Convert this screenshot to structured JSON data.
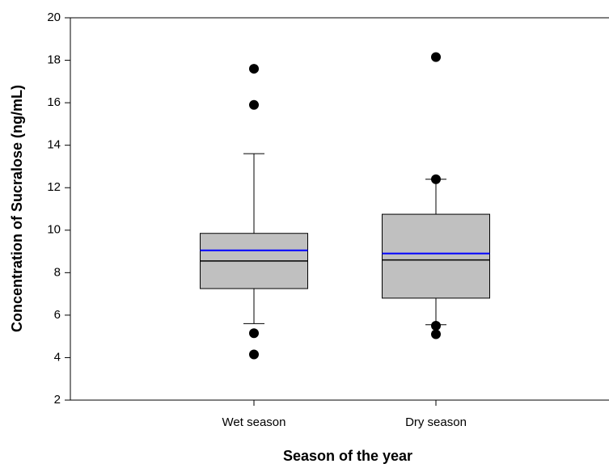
{
  "chart_data": {
    "type": "box",
    "y_label": "Concentration of Sucralose (ng/mL)",
    "x_label": "Season of the year",
    "categories": [
      "Wet season",
      "Dry season"
    ],
    "boxes": [
      {
        "whisker_low": 5.6,
        "q1": 7.25,
        "median": 8.55,
        "q3": 9.85,
        "whisker_high": 13.6,
        "mean": 9.05,
        "outliers": [
          17.6,
          15.9,
          5.15,
          4.15
        ]
      },
      {
        "whisker_low": 5.55,
        "q1": 6.8,
        "median": 8.6,
        "q3": 10.75,
        "whisker_high": 12.4,
        "mean": 8.9,
        "outliers": [
          18.15,
          12.4,
          5.5,
          5.1
        ]
      }
    ],
    "box_color": "#c0c0c0",
    "median_color": "#000000",
    "mean_color": "#0000ff",
    "outlier_color": "#000000",
    "ylim": [
      2,
      20
    ],
    "yticks": [
      2,
      4,
      6,
      8,
      10,
      12,
      14,
      16,
      18,
      20
    ]
  }
}
